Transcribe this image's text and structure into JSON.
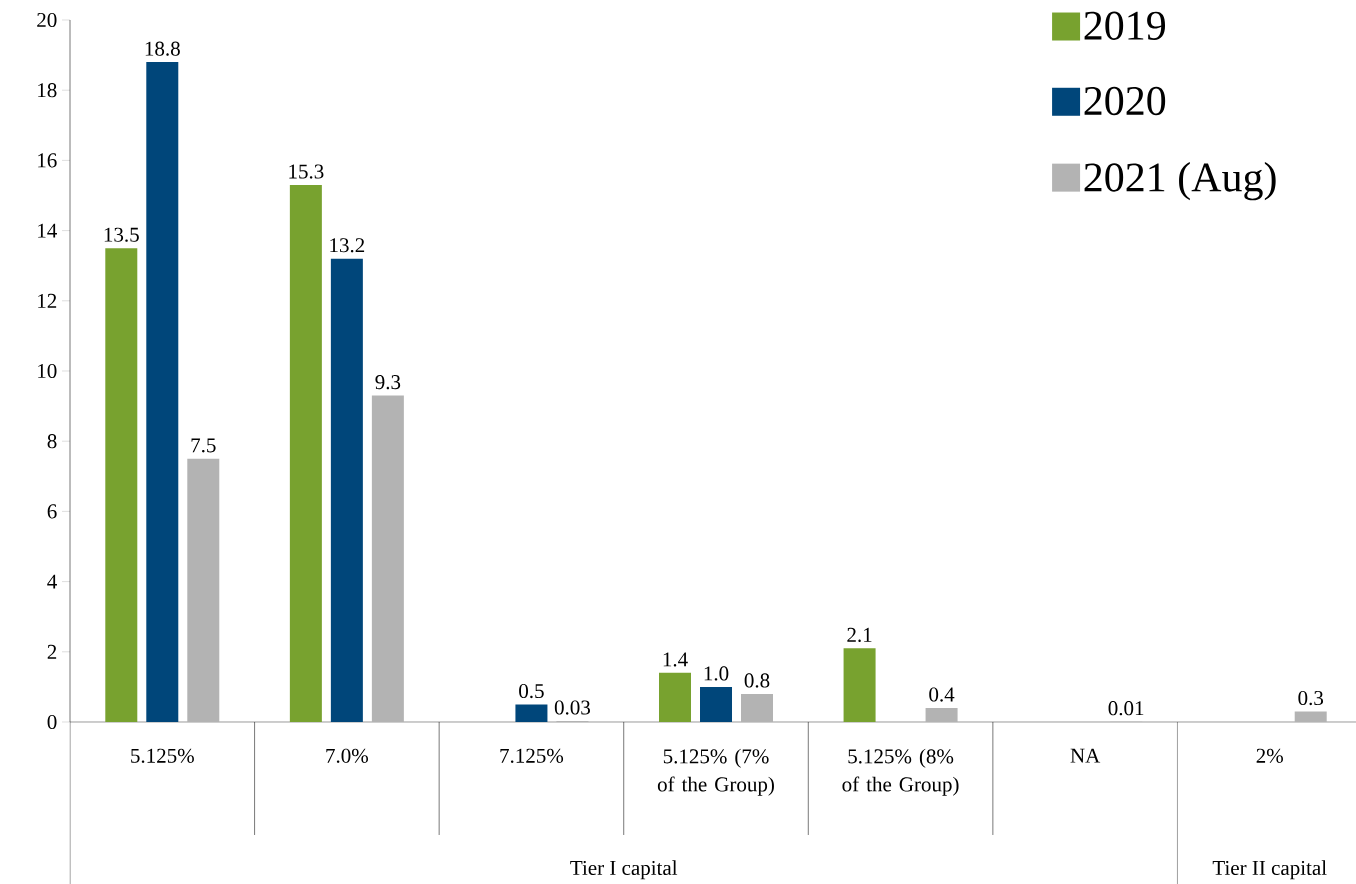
{
  "chart_data": {
    "type": "bar",
    "categories": [
      "5.125%",
      "7.0%",
      "7.125%",
      "5.125% (7% of the Group)",
      "5.125% (8% of the Group)",
      "NA",
      "2%"
    ],
    "series": [
      {
        "name": "2019",
        "color": "#78a22f",
        "values": [
          13.5,
          15.3,
          null,
          1.4,
          2.1,
          null,
          null
        ],
        "value_labels": [
          "13.5",
          "15.3",
          null,
          "1.4",
          "2.1",
          null,
          null
        ]
      },
      {
        "name": "2020",
        "color": "#00467a",
        "values": [
          18.8,
          13.2,
          0.5,
          1.0,
          null,
          null,
          null
        ],
        "value_labels": [
          "18.8",
          "13.2",
          "0.5",
          "1.0",
          null,
          null,
          null
        ]
      },
      {
        "name": "2021 (Aug)",
        "color": "#b3b3b3",
        "values": [
          7.5,
          9.3,
          0.03,
          0.8,
          0.4,
          0.01,
          0.3
        ],
        "value_labels": [
          "7.5",
          "9.3",
          "0.03",
          "0.8",
          "0.4",
          "0.01",
          "0.3"
        ]
      }
    ],
    "annotations": [
      "Tier I capital",
      "Tier II capital"
    ],
    "ylim": [
      0,
      20
    ],
    "yticks": [
      0,
      2,
      4,
      6,
      8,
      10,
      12,
      14,
      16,
      18,
      20
    ],
    "legend": "top right",
    "grid": false
  }
}
